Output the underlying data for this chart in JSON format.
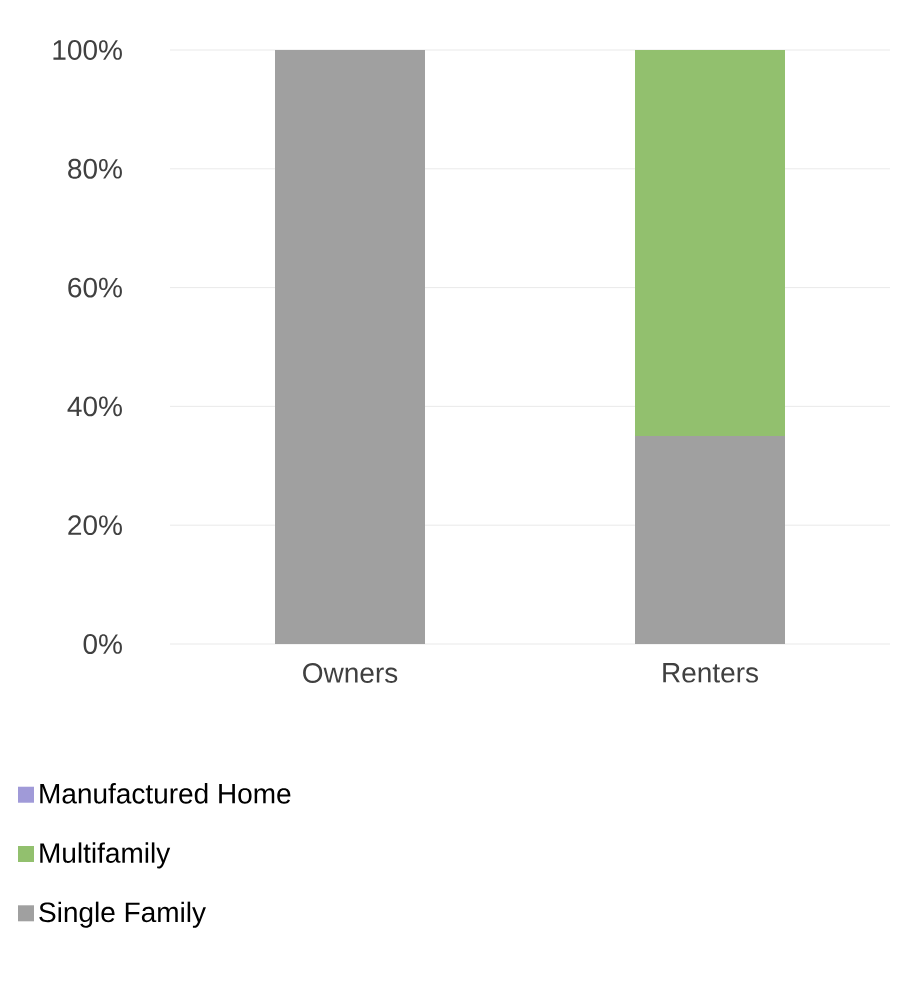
{
  "chart_data": {
    "type": "bar",
    "stacked": true,
    "categories": [
      "Owners",
      "Renters"
    ],
    "series": [
      {
        "name": "Single Family",
        "color": "#a0a0a0",
        "values": [
          100,
          35
        ]
      },
      {
        "name": "Multifamily",
        "color": "#92c06e",
        "values": [
          0,
          65
        ]
      },
      {
        "name": "Manufactured Home",
        "color": "#a09ad8",
        "values": [
          0,
          0
        ]
      }
    ],
    "ylim": [
      0,
      100
    ],
    "yticks": [
      {
        "value": 0,
        "label": "0%"
      },
      {
        "value": 20,
        "label": "20%"
      },
      {
        "value": 40,
        "label": "40%"
      },
      {
        "value": 60,
        "label": "60%"
      },
      {
        "value": 80,
        "label": "80%"
      },
      {
        "value": 100,
        "label": "100%"
      }
    ],
    "grid": "y",
    "legend": "bottom"
  }
}
